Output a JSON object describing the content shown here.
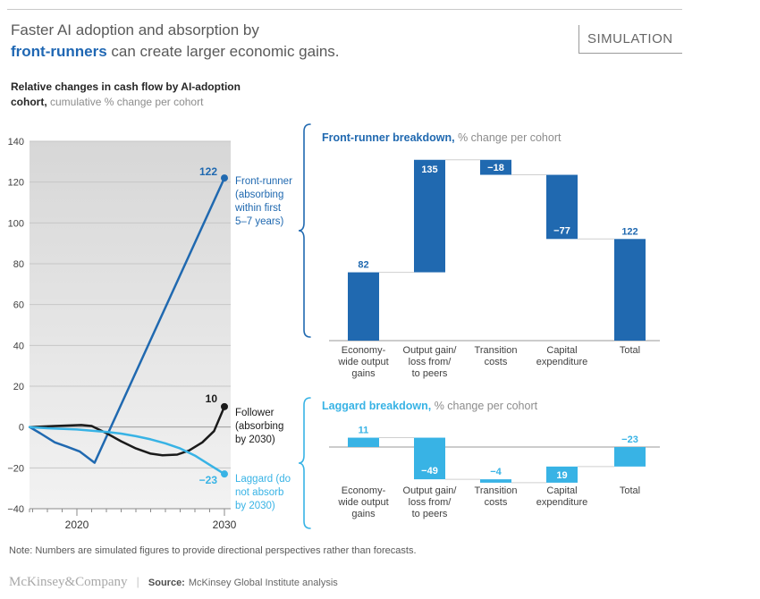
{
  "header": {
    "title_line1": "Faster AI adoption and absorption by",
    "title_highlight": "front-runners",
    "title_rest": " can create larger economic gains.",
    "badge": "SIMULATION"
  },
  "subtitle": {
    "bold_line1": "Relative changes in cash flow by AI-adoption",
    "bold_word": "cohort,",
    "muted_rest": " cumulative % change per cohort"
  },
  "note": "Note: Numbers are simulated figures to provide directional perspectives rather than forecasts.",
  "footer": {
    "brand": "McKinsey&Company",
    "source_label": "Source:",
    "source_text": "McKinsey Global Institute analysis"
  },
  "colors": {
    "dark_blue": "#2069b0",
    "light_blue": "#38b3e5",
    "black_line": "#1a1a1a"
  },
  "chart_data": [
    {
      "type": "line",
      "title": "Relative changes in cash flow by AI-adoption cohort, cumulative % change per cohort",
      "x_range": [
        2016.8,
        2030
      ],
      "x_tick_labels": [
        2020,
        2030
      ],
      "y_ticks": [
        140,
        120,
        100,
        80,
        60,
        40,
        20,
        0,
        -20,
        -40
      ],
      "y_range": [
        -40,
        140
      ],
      "grid": true,
      "series": [
        {
          "name": "front-runner",
          "color": "#2069b0",
          "end_value": 122,
          "end_label": "122",
          "annotation_lines": [
            "Front-runner",
            "(absorbing",
            "within first",
            "5–7 years)"
          ],
          "points": [
            [
              2016.8,
              0
            ],
            [
              2017.5,
              -3
            ],
            [
              2018.5,
              -7.5
            ],
            [
              2019.3,
              -9.5
            ],
            [
              2020.2,
              -12
            ],
            [
              2021.2,
              -17.5
            ],
            [
              2030,
              122
            ]
          ]
        },
        {
          "name": "follower",
          "color": "#1a1a1a",
          "end_value": 10,
          "end_label": "10",
          "annotation_lines": [
            "Follower",
            "(absorbing",
            "by 2030)"
          ],
          "points": [
            [
              2016.8,
              0
            ],
            [
              2018.5,
              0.5
            ],
            [
              2020.3,
              1
            ],
            [
              2021,
              0.5
            ],
            [
              2022,
              -3
            ],
            [
              2023,
              -7
            ],
            [
              2024,
              -10.5
            ],
            [
              2025,
              -13
            ],
            [
              2025.8,
              -13.8
            ],
            [
              2026.8,
              -13.5
            ],
            [
              2027.6,
              -11.5
            ],
            [
              2028.5,
              -7.5
            ],
            [
              2029.3,
              -2
            ],
            [
              2030,
              10
            ]
          ]
        },
        {
          "name": "laggard",
          "color": "#38b3e5",
          "end_value": -23,
          "end_label": "−23",
          "annotation_lines": [
            "Laggard (do",
            "not absorb",
            "by 2030)"
          ],
          "points": [
            [
              2016.8,
              0
            ],
            [
              2018,
              -0.6
            ],
            [
              2020,
              -1.2
            ],
            [
              2022,
              -2.4
            ],
            [
              2023,
              -3.2
            ],
            [
              2024,
              -4.5
            ],
            [
              2025,
              -6
            ],
            [
              2026,
              -8
            ],
            [
              2027,
              -10.5
            ],
            [
              2028,
              -14
            ],
            [
              2029,
              -18.5
            ],
            [
              2030,
              -23
            ]
          ]
        }
      ]
    },
    {
      "type": "waterfall",
      "title_bold": "Front-runner breakdown,",
      "title_rest": " % change per cohort",
      "bar_color": "#2069b0",
      "label_color": "#2069b0",
      "bars": [
        {
          "categories": [
            "Economy-",
            "wide output",
            "gains"
          ],
          "value": 82,
          "display": "82",
          "from": 0,
          "to": 82,
          "placement": "above"
        },
        {
          "categories": [
            "Output gain/",
            "loss from/",
            "to peers"
          ],
          "value": 135,
          "display": "135",
          "from": 82,
          "to": 217,
          "placement": "inside-top"
        },
        {
          "categories": [
            "Transition",
            "costs"
          ],
          "value": -18,
          "display": "−18",
          "from": 217,
          "to": 199,
          "placement": "inside-mid"
        },
        {
          "categories": [
            "Capital",
            "expenditure"
          ],
          "value": -77,
          "display": "−77",
          "from": 199,
          "to": 122,
          "placement": "inside-bottom"
        },
        {
          "categories": [
            "Total"
          ],
          "value": 122,
          "display": "122",
          "from": 0,
          "to": 122,
          "placement": "above"
        }
      ],
      "connector_levels": [
        82,
        217,
        199,
        122
      ]
    },
    {
      "type": "waterfall",
      "title_bold": "Laggard breakdown,",
      "title_rest": " % change per cohort",
      "bar_color": "#38b3e5",
      "label_color": "#38b3e5",
      "bars": [
        {
          "categories": [
            "Economy-",
            "wide output",
            "gains"
          ],
          "value": 11,
          "display": "11",
          "from": 0,
          "to": 11,
          "placement": "above"
        },
        {
          "categories": [
            "Output gain/",
            "loss from/",
            "to peers"
          ],
          "value": -49,
          "display": "−49",
          "from": 11,
          "to": -38,
          "placement": "inside-bottom"
        },
        {
          "categories": [
            "Transition",
            "costs"
          ],
          "value": -4,
          "display": "−4",
          "from": -38,
          "to": -42,
          "placement": "above"
        },
        {
          "categories": [
            "Capital",
            "expenditure"
          ],
          "value": 19,
          "display": "19",
          "from": -42,
          "to": -23,
          "placement": "inside-mid"
        },
        {
          "categories": [
            "Total"
          ],
          "value": -23,
          "display": "−23",
          "from": 0,
          "to": -23,
          "placement": "above"
        }
      ],
      "connector_levels": [
        11,
        -38,
        -42,
        -23
      ]
    }
  ]
}
